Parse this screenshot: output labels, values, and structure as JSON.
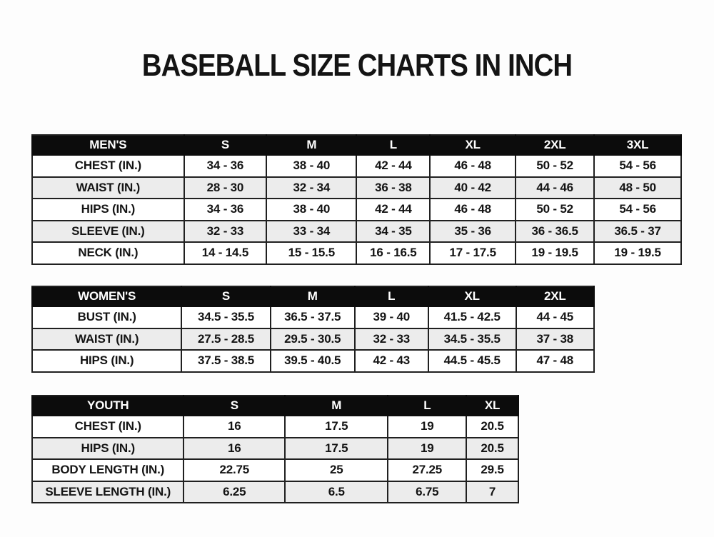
{
  "page": {
    "title": "BASEBALL SIZE CHARTS IN INCH"
  },
  "colors": {
    "page_bg": "#fdfdfd",
    "header_bg": "#0c0c0c",
    "header_text": "#ffffff",
    "row_white": "#ffffff",
    "row_gray": "#ececec",
    "grid_line": "#202020",
    "text": "#141414"
  },
  "chart_data": [
    {
      "type": "table",
      "title": "MEN'S",
      "columns": [
        "MEN'S",
        "S",
        "M",
        "L",
        "XL",
        "2XL",
        "3XL"
      ],
      "rows": [
        [
          "CHEST (IN.)",
          "34 - 36",
          "38 - 40",
          "42 - 44",
          "46 - 48",
          "50 - 52",
          "54 - 56"
        ],
        [
          "WAIST (IN.)",
          "28 - 30",
          "32 - 34",
          "36 - 38",
          "40 - 42",
          "44 - 46",
          "48 - 50"
        ],
        [
          "HIPS (IN.)",
          "34 - 36",
          "38 - 40",
          "42 - 44",
          "46 - 48",
          "50 - 52",
          "54 - 56"
        ],
        [
          "SLEEVE (IN.)",
          "32 - 33",
          "33 - 34",
          "34 - 35",
          "35 - 36",
          "36 - 36.5",
          "36.5 - 37"
        ],
        [
          "NECK (IN.)",
          "14 - 14.5",
          "15 - 15.5",
          "16 - 16.5",
          "17 - 17.5",
          "19 - 19.5",
          "19 - 19.5"
        ]
      ]
    },
    {
      "type": "table",
      "title": "WOMEN'S",
      "columns": [
        "WOMEN'S",
        "S",
        "M",
        "L",
        "XL",
        "2XL"
      ],
      "rows": [
        [
          "BUST (IN.)",
          "34.5 - 35.5",
          "36.5 - 37.5",
          "39 - 40",
          "41.5 - 42.5",
          "44 - 45"
        ],
        [
          "WAIST (IN.)",
          "27.5 - 28.5",
          "29.5 - 30.5",
          "32 - 33",
          "34.5 - 35.5",
          "37 - 38"
        ],
        [
          "HIPS (IN.)",
          "37.5 - 38.5",
          "39.5 - 40.5",
          "42 - 43",
          "44.5 - 45.5",
          "47 - 48"
        ]
      ]
    },
    {
      "type": "table",
      "title": "YOUTH",
      "columns": [
        "YOUTH",
        "S",
        "M",
        "L",
        "XL"
      ],
      "rows": [
        [
          "CHEST (IN.)",
          "16",
          "17.5",
          "19",
          "20.5"
        ],
        [
          "HIPS (IN.)",
          "16",
          "17.5",
          "19",
          "20.5"
        ],
        [
          "BODY LENGTH (IN.)",
          "22.75",
          "25",
          "27.25",
          "29.5"
        ],
        [
          "SLEEVE LENGTH (IN.)",
          "6.25",
          "6.5",
          "6.75",
          "7"
        ]
      ]
    }
  ]
}
